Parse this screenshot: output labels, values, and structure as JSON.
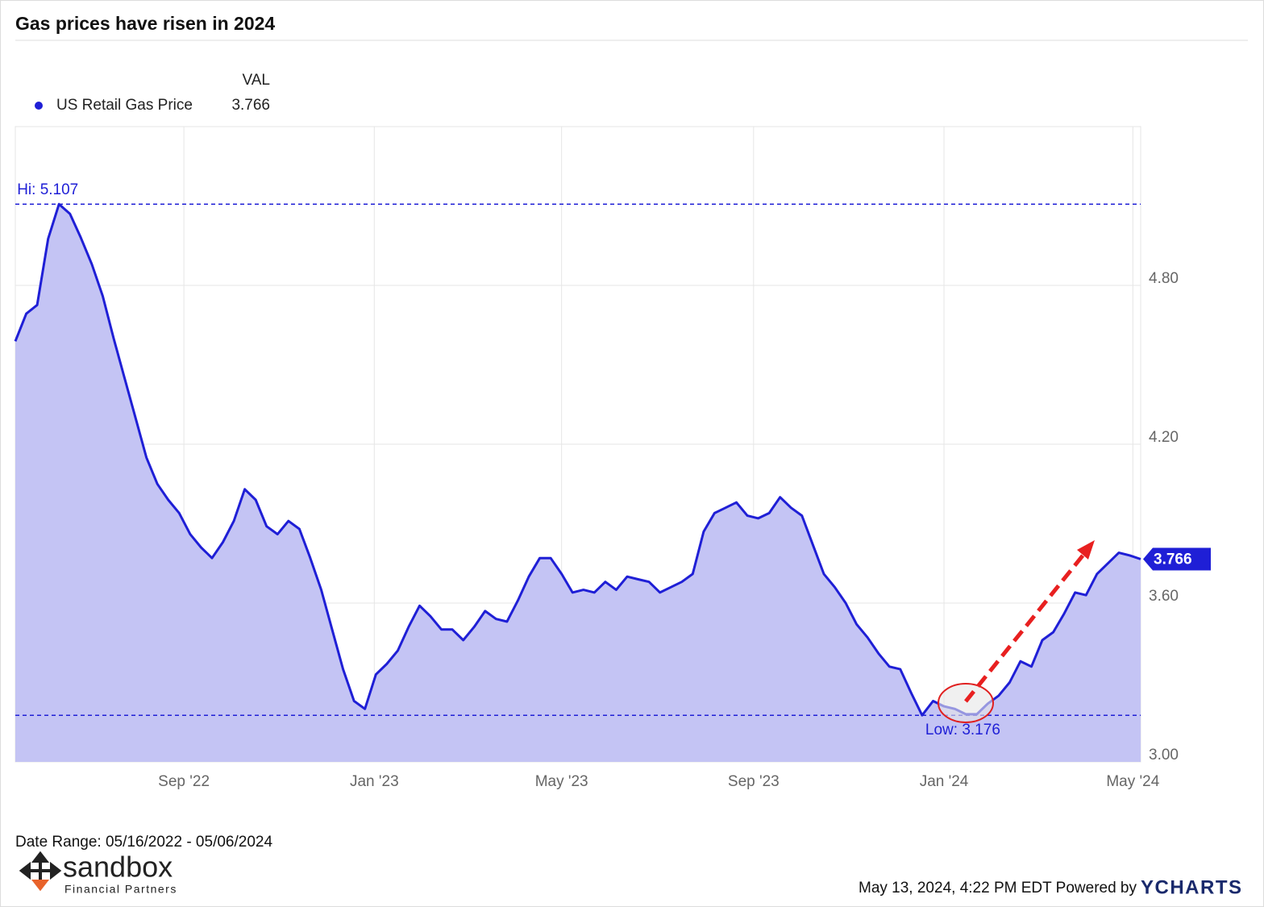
{
  "chart_data": {
    "type": "area",
    "title": "Gas prices have risen in 2024",
    "legend_header": "VAL",
    "x": [
      "2022-05-16",
      "2022-05-23",
      "2022-05-30",
      "2022-06-06",
      "2022-06-13",
      "2022-06-20",
      "2022-06-27",
      "2022-07-04",
      "2022-07-11",
      "2022-07-18",
      "2022-07-25",
      "2022-08-01",
      "2022-08-08",
      "2022-08-15",
      "2022-08-22",
      "2022-08-29",
      "2022-09-05",
      "2022-09-12",
      "2022-09-19",
      "2022-09-26",
      "2022-10-03",
      "2022-10-10",
      "2022-10-17",
      "2022-10-24",
      "2022-10-31",
      "2022-11-07",
      "2022-11-14",
      "2022-11-21",
      "2022-11-28",
      "2022-12-05",
      "2022-12-12",
      "2022-12-19",
      "2022-12-26",
      "2023-01-02",
      "2023-01-09",
      "2023-01-16",
      "2023-01-23",
      "2023-01-30",
      "2023-02-06",
      "2023-02-13",
      "2023-02-20",
      "2023-02-27",
      "2023-03-06",
      "2023-03-13",
      "2023-03-20",
      "2023-03-27",
      "2023-04-03",
      "2023-04-10",
      "2023-04-17",
      "2023-04-24",
      "2023-05-01",
      "2023-05-08",
      "2023-05-15",
      "2023-05-22",
      "2023-05-29",
      "2023-06-05",
      "2023-06-12",
      "2023-06-19",
      "2023-06-26",
      "2023-07-03",
      "2023-07-10",
      "2023-07-17",
      "2023-07-24",
      "2023-07-31",
      "2023-08-07",
      "2023-08-14",
      "2023-08-21",
      "2023-08-28",
      "2023-09-04",
      "2023-09-11",
      "2023-09-18",
      "2023-09-25",
      "2023-10-02",
      "2023-10-09",
      "2023-10-16",
      "2023-10-23",
      "2023-10-30",
      "2023-11-06",
      "2023-11-13",
      "2023-11-20",
      "2023-11-27",
      "2023-12-04",
      "2023-12-11",
      "2023-12-18",
      "2023-12-25",
      "2024-01-01",
      "2024-01-08",
      "2024-01-15",
      "2024-01-22",
      "2024-01-29",
      "2024-02-05",
      "2024-02-12",
      "2024-02-19",
      "2024-02-26",
      "2024-03-04",
      "2024-03-11",
      "2024-03-18",
      "2024-03-25",
      "2024-04-01",
      "2024-04-08",
      "2024-04-15",
      "2024-04-22",
      "2024-04-29",
      "2024-05-06"
    ],
    "series": [
      {
        "name": "US Retail Gas Price",
        "color": "#1f1fd6",
        "fill": "#c4c4f4",
        "last_label": "3.766",
        "values": [
          4.589,
          4.693,
          4.726,
          4.976,
          5.107,
          5.07,
          4.98,
          4.88,
          4.76,
          4.6,
          4.45,
          4.3,
          4.15,
          4.05,
          3.99,
          3.94,
          3.86,
          3.81,
          3.77,
          3.83,
          3.91,
          4.03,
          3.99,
          3.89,
          3.86,
          3.91,
          3.88,
          3.77,
          3.65,
          3.5,
          3.35,
          3.23,
          3.2,
          3.33,
          3.37,
          3.42,
          3.51,
          3.59,
          3.55,
          3.5,
          3.5,
          3.46,
          3.51,
          3.57,
          3.54,
          3.53,
          3.61,
          3.7,
          3.77,
          3.77,
          3.71,
          3.64,
          3.65,
          3.64,
          3.68,
          3.65,
          3.7,
          3.69,
          3.68,
          3.64,
          3.66,
          3.68,
          3.71,
          3.87,
          3.94,
          3.96,
          3.98,
          3.93,
          3.92,
          3.94,
          4.0,
          3.96,
          3.93,
          3.82,
          3.71,
          3.66,
          3.6,
          3.52,
          3.47,
          3.41,
          3.36,
          3.35,
          3.26,
          3.176,
          3.23,
          3.21,
          3.2,
          3.18,
          3.18,
          3.22,
          3.25,
          3.3,
          3.38,
          3.36,
          3.46,
          3.49,
          3.56,
          3.64,
          3.63,
          3.71,
          3.75,
          3.79,
          3.78,
          3.766
        ]
      }
    ],
    "xlim": [
      "2022-05-16",
      "2024-05-06"
    ],
    "xticks": [
      {
        "value": "2022-09-01",
        "label": "Sep '22"
      },
      {
        "value": "2023-01-01",
        "label": "Jan '23"
      },
      {
        "value": "2023-05-01",
        "label": "May '23"
      },
      {
        "value": "2023-09-01",
        "label": "Sep '23"
      },
      {
        "value": "2024-01-01",
        "label": "Jan '24"
      },
      {
        "value": "2024-05-01",
        "label": "May '24"
      }
    ],
    "ylim": [
      3,
      5.4
    ],
    "yticks": [
      {
        "value": 3,
        "label": "3.00"
      },
      {
        "value": 3.6,
        "label": "3.60"
      },
      {
        "value": 4.2,
        "label": "4.20"
      },
      {
        "value": 4.8,
        "label": "4.80"
      }
    ],
    "grid": true,
    "reference_lines": [
      {
        "label": "Hi: 5.107",
        "value": 5.107
      },
      {
        "label": "Low: 3.176",
        "value": 3.176
      }
    ],
    "footer": {
      "date_range": "Date Range: 05/16/2022 - 05/06/2024",
      "timestamp": "May 13, 2024, 4:22 PM EDT Powered by",
      "brand": "YCHARTS",
      "logo": "sandbox",
      "logo_sub": "Financial Partners"
    }
  }
}
